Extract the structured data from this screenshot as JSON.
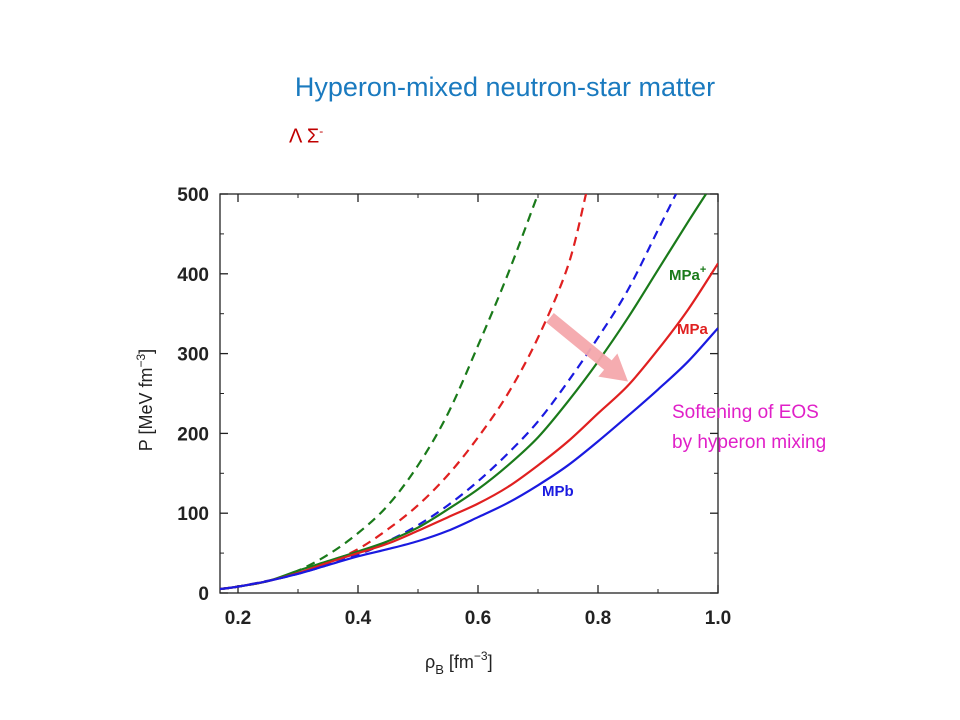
{
  "slide": {
    "title": "Hyperon-mixed neutron-star matter",
    "hyperon_label": "Λ Σ",
    "hyperon_label_sup": "-",
    "annotation_line1": "Softening of EOS",
    "annotation_line2": "by hyperon mixing"
  },
  "chart_data": {
    "type": "line",
    "xlabel": "ρB [fm−3]",
    "ylabel": "P [MeV fm−3]",
    "xlim": [
      0.17,
      1.0
    ],
    "ylim": [
      0,
      500
    ],
    "xticks": [
      "0.2",
      "0.4",
      "0.6",
      "0.8",
      "1.0"
    ],
    "yticks": [
      "0",
      "100",
      "200",
      "300",
      "400",
      "500"
    ],
    "series": [
      {
        "name": "",
        "style": "dashed",
        "color": "#1a7a1a",
        "x": [
          0.17,
          0.2,
          0.25,
          0.3,
          0.35,
          0.4,
          0.45,
          0.5,
          0.55,
          0.6,
          0.65,
          0.7
        ],
        "y": [
          5,
          8,
          15,
          28,
          48,
          75,
          110,
          160,
          225,
          310,
          400,
          500
        ]
      },
      {
        "name": "",
        "style": "dashed",
        "color": "#e02020",
        "x": [
          0.17,
          0.2,
          0.25,
          0.3,
          0.35,
          0.4,
          0.45,
          0.5,
          0.55,
          0.6,
          0.65,
          0.7,
          0.75,
          0.78
        ],
        "y": [
          5,
          8,
          15,
          25,
          38,
          55,
          80,
          110,
          148,
          195,
          250,
          320,
          410,
          500
        ]
      },
      {
        "name": "",
        "style": "dashed",
        "color": "#1a1ae0",
        "x": [
          0.17,
          0.2,
          0.3,
          0.4,
          0.45,
          0.5,
          0.55,
          0.6,
          0.65,
          0.7,
          0.75,
          0.8,
          0.85,
          0.9,
          0.93
        ],
        "y": [
          5,
          8,
          24,
          48,
          65,
          85,
          110,
          140,
          175,
          215,
          265,
          320,
          380,
          455,
          500
        ]
      },
      {
        "name": "MPa+",
        "style": "solid",
        "color": "#1a7a1a",
        "x": [
          0.17,
          0.2,
          0.25,
          0.3,
          0.35,
          0.4,
          0.45,
          0.5,
          0.55,
          0.6,
          0.65,
          0.7,
          0.75,
          0.8,
          0.85,
          0.9,
          0.95,
          0.98
        ],
        "y": [
          5,
          8,
          15,
          28,
          40,
          52,
          65,
          82,
          105,
          130,
          160,
          195,
          240,
          290,
          345,
          405,
          465,
          500
        ]
      },
      {
        "name": "MPa",
        "style": "solid",
        "color": "#e02020",
        "x": [
          0.17,
          0.2,
          0.25,
          0.3,
          0.35,
          0.4,
          0.45,
          0.5,
          0.55,
          0.6,
          0.65,
          0.7,
          0.75,
          0.8,
          0.85,
          0.9,
          0.95,
          1.0
        ],
        "y": [
          5,
          8,
          15,
          25,
          38,
          50,
          62,
          78,
          95,
          112,
          133,
          160,
          190,
          225,
          260,
          305,
          355,
          413
        ]
      },
      {
        "name": "MPb",
        "style": "solid",
        "color": "#1a1ae0",
        "x": [
          0.17,
          0.2,
          0.25,
          0.3,
          0.35,
          0.4,
          0.45,
          0.5,
          0.55,
          0.6,
          0.65,
          0.7,
          0.75,
          0.8,
          0.85,
          0.9,
          0.95,
          1.0
        ],
        "y": [
          5,
          8,
          15,
          24,
          35,
          46,
          55,
          65,
          78,
          95,
          113,
          135,
          160,
          190,
          222,
          255,
          290,
          332
        ]
      }
    ],
    "arrow": {
      "from": [
        0.72,
        345
      ],
      "to": [
        0.85,
        265
      ],
      "color": "#f4a8ac"
    }
  }
}
